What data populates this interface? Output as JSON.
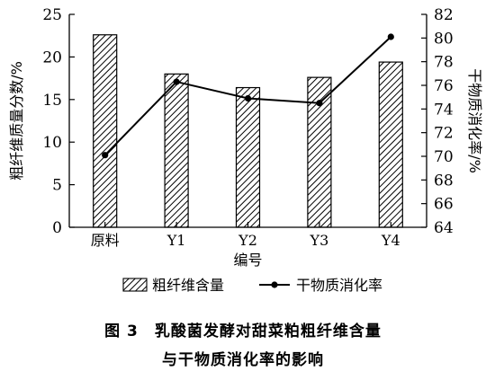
{
  "chart_data": {
    "type": "bar+line",
    "categories": [
      "原料",
      "Y1",
      "Y2",
      "Y3",
      "Y4"
    ],
    "xlabel": "编号",
    "ylabel_left": "粗纤维质量分数/%",
    "ylabel_right": "干物质消化率/%",
    "ylim_left": [
      0,
      25
    ],
    "yticks_left": [
      0,
      5,
      10,
      15,
      20,
      25
    ],
    "ylim_right": [
      64,
      82
    ],
    "yticks_right": [
      64,
      66,
      68,
      70,
      72,
      74,
      76,
      78,
      80,
      82
    ],
    "series": [
      {
        "name": "粗纤维含量",
        "type": "bar",
        "axis": "left",
        "pattern": "diagonal-hatch",
        "values": [
          22.6,
          18.0,
          16.4,
          17.6,
          19.4
        ]
      },
      {
        "name": "干物质消化率",
        "type": "line",
        "axis": "right",
        "marker": "circle",
        "values": [
          70.1,
          76.3,
          74.9,
          74.5,
          80.1
        ]
      }
    ],
    "legend_position": "bottom",
    "grid": false
  },
  "caption": {
    "figure_number": "图 3",
    "line1": "乳酸菌发酵对甜菜粕粗纤维含量",
    "line2": "与干物质消化率的影响"
  }
}
